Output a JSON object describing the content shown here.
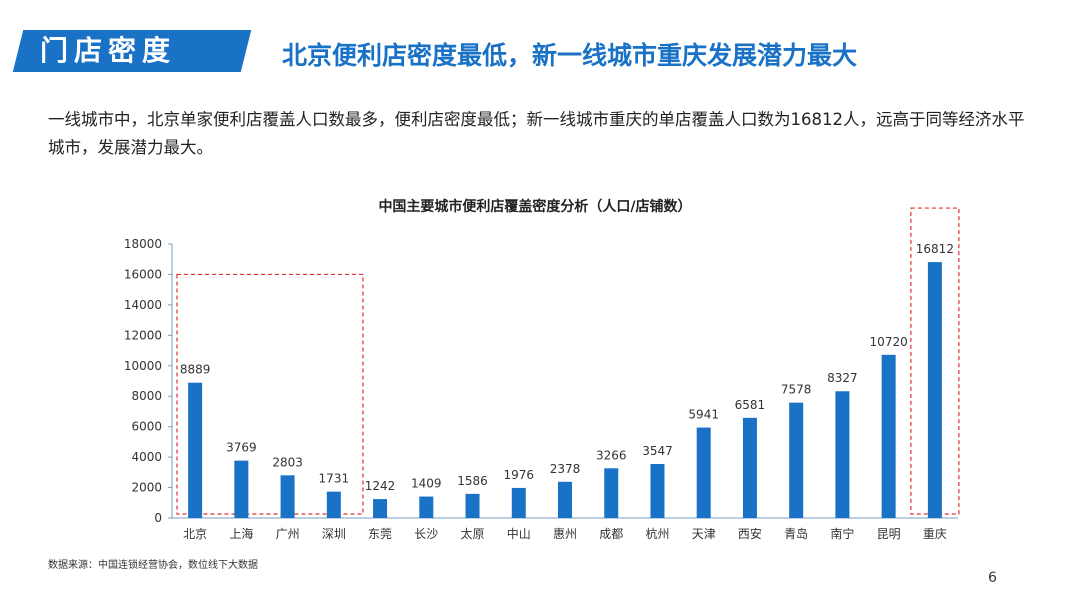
{
  "header": {
    "section_label": "门店密度",
    "headline": "北京便利店密度最低，新一线城市重庆发展潜力最大"
  },
  "body_text": "一线城市中，北京单家便利店覆盖人口数最多，便利店密度最低；新一线城市重庆的单店覆盖人口数为16812人，远高于同等经济水平城市，发展潜力最大。",
  "colors": {
    "accent": "#1a72c6",
    "bar": "#1a72c6",
    "highlight_box": "#e03030"
  },
  "chart_data": {
    "type": "bar",
    "title": "中国主要城市便利店覆盖密度分析（人口/店铺数）",
    "xlabel": "",
    "ylabel": "",
    "categories": [
      "北京",
      "上海",
      "广州",
      "深圳",
      "东莞",
      "长沙",
      "太原",
      "中山",
      "惠州",
      "成都",
      "杭州",
      "天津",
      "西安",
      "青岛",
      "南宁",
      "昆明",
      "重庆"
    ],
    "values": [
      8889,
      3769,
      2803,
      1731,
      1242,
      1409,
      1586,
      1976,
      2378,
      3266,
      3547,
      5941,
      6581,
      7578,
      8327,
      10720,
      16812
    ],
    "ylim": [
      0,
      18000
    ],
    "yticks": [
      0,
      2000,
      4000,
      6000,
      8000,
      10000,
      12000,
      14000,
      16000,
      18000
    ],
    "grid": false,
    "legend": "none",
    "highlight_groups": [
      [
        "北京",
        "上海",
        "广州",
        "深圳"
      ],
      [
        "重庆"
      ]
    ]
  },
  "footer": {
    "source": "数据来源：中国连锁经营协会，数位线下大数据",
    "page_number": "6"
  }
}
